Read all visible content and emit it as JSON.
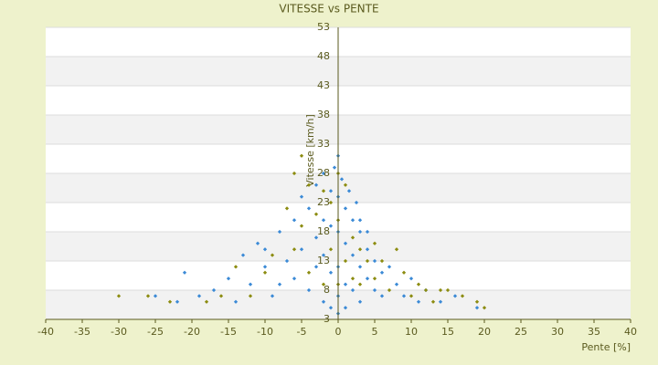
{
  "chart_data": {
    "type": "scatter",
    "title": "VITESSE vs PENTE",
    "x_label": "Pente [%]",
    "y_label": "Vitesse [km/h]",
    "xlim": [
      -40,
      40
    ],
    "xticks": [
      -40,
      -35,
      -30,
      -25,
      -20,
      -15,
      -10,
      -5,
      0,
      5,
      10,
      15,
      20,
      25,
      30,
      35,
      40
    ],
    "ylim": [
      3,
      53
    ],
    "yticks": [
      3,
      8,
      13,
      18,
      23,
      28,
      33,
      38,
      43,
      48,
      53
    ],
    "grid": true,
    "series": [
      {
        "color": "#3b8ad6",
        "x": [
          -21,
          -19,
          -17,
          -15,
          -13,
          -12,
          -11,
          -10,
          -9,
          -8,
          -7,
          -6,
          -6,
          -5,
          -5,
          -4,
          -4,
          -3,
          -3,
          -3,
          -2,
          -2,
          -2,
          -2,
          -1,
          -1,
          -1,
          -1,
          0,
          0,
          0,
          0,
          0,
          0,
          1,
          1,
          1,
          1,
          2,
          2,
          2,
          3,
          3,
          3,
          4,
          4,
          5,
          5,
          6,
          6,
          7,
          8,
          9,
          10,
          11,
          12,
          14,
          16,
          19,
          -25,
          -22,
          -14,
          0.5,
          -0.5,
          1.5,
          2.5,
          -8,
          -10,
          3,
          4
        ],
        "values": [
          11,
          7,
          8,
          10,
          14,
          9,
          16,
          12,
          7,
          18,
          13,
          20,
          10,
          24,
          15,
          8,
          22,
          26,
          17,
          12,
          28,
          20,
          14,
          6,
          25,
          19,
          11,
          5,
          31,
          24,
          18,
          12,
          7,
          4,
          22,
          16,
          9,
          5,
          20,
          14,
          8,
          18,
          12,
          6,
          15,
          10,
          13,
          8,
          11,
          7,
          12,
          9,
          7,
          10,
          6,
          8,
          6,
          7,
          5,
          7,
          6,
          6,
          27,
          29,
          25,
          23,
          9,
          15,
          20,
          18
        ]
      },
      {
        "color": "#8c8c10",
        "x": [
          -30,
          -26,
          -23,
          -18,
          -16,
          -14,
          -12,
          -10,
          -9,
          -7,
          -6,
          -6,
          -5,
          -5,
          -4,
          -4,
          -3,
          -2,
          -2,
          -1,
          -1,
          0,
          0,
          0,
          1,
          1,
          2,
          2,
          3,
          3,
          4,
          5,
          5,
          6,
          7,
          8,
          9,
          10,
          11,
          12,
          13,
          14,
          15,
          17,
          19,
          20
        ],
        "values": [
          7,
          7,
          6,
          6,
          7,
          12,
          7,
          11,
          14,
          22,
          28,
          15,
          31,
          19,
          26,
          11,
          21,
          25,
          9,
          23,
          15,
          28,
          20,
          9,
          26,
          13,
          17,
          10,
          15,
          9,
          13,
          16,
          10,
          13,
          8,
          15,
          11,
          7,
          9,
          8,
          6,
          8,
          8,
          7,
          6,
          5
        ]
      }
    ]
  }
}
